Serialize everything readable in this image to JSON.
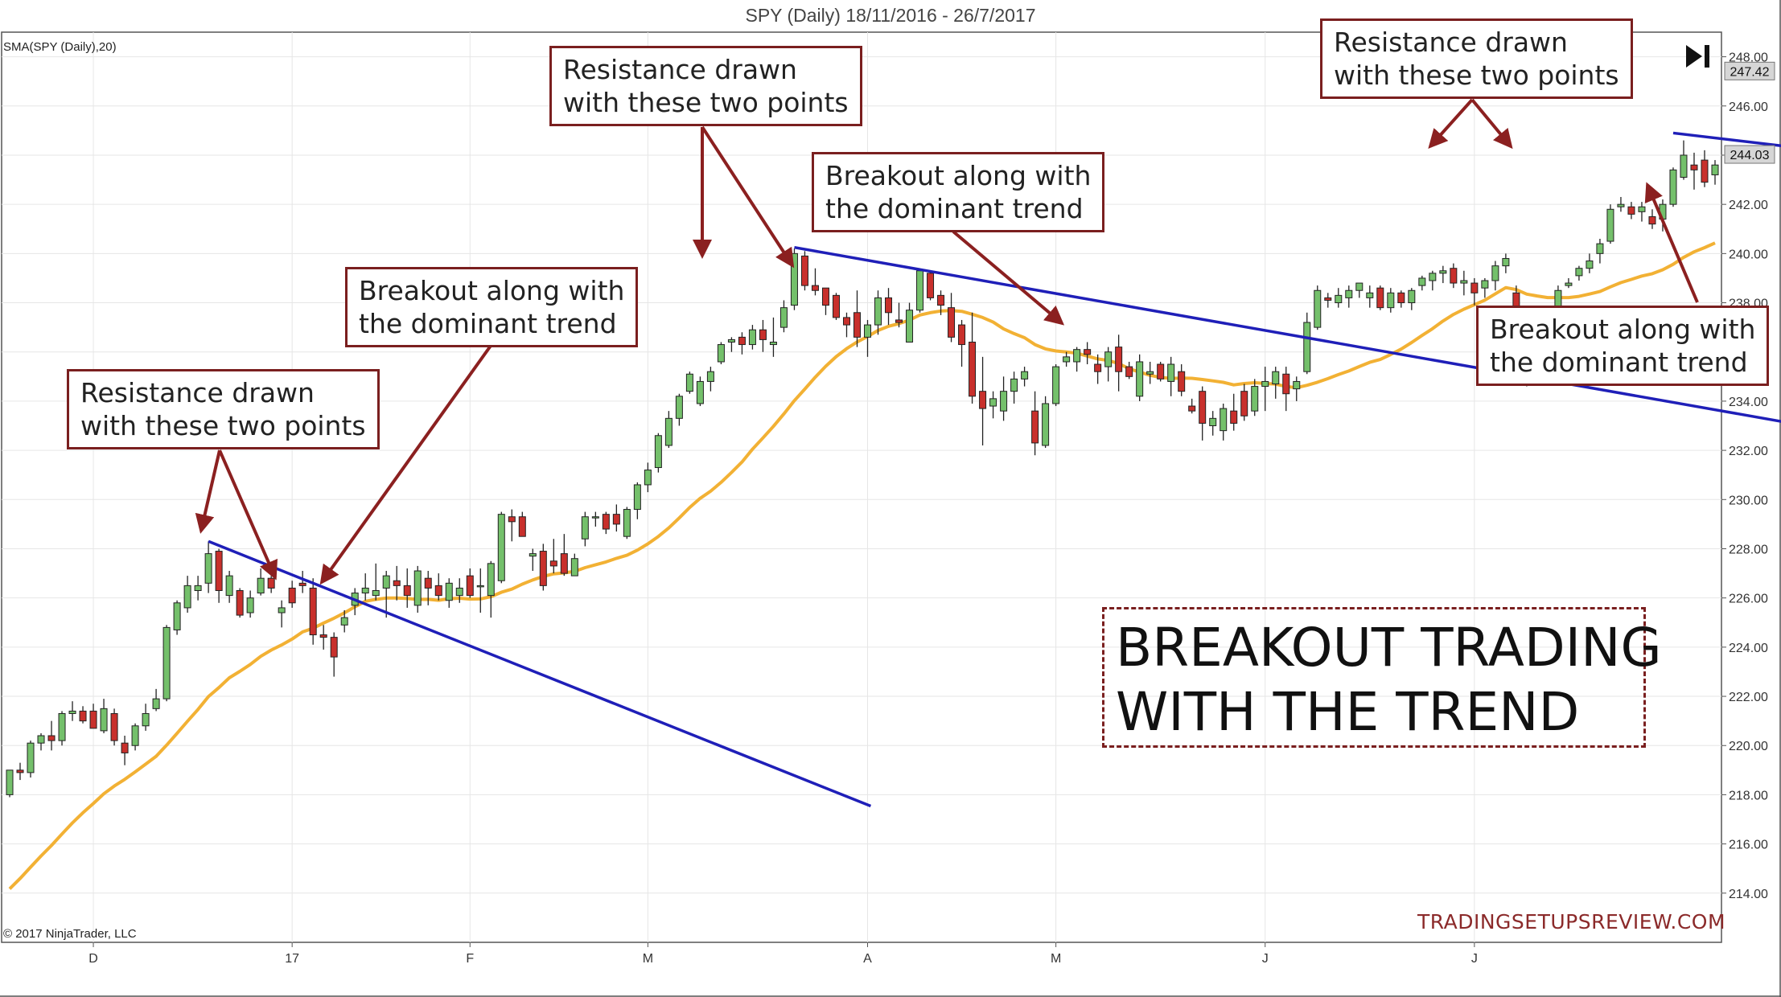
{
  "chart_data": {
    "type": "candlestick",
    "title": "SPY (Daily)  18/11/2016 - 26/7/2017",
    "indicator_label": "SMA(SPY (Daily),20)",
    "copyright": "© 2017 NinjaTrader, LLC",
    "watermark": "TRADINGSETUPSREVIEW.COM",
    "headline_lines": [
      "BREAKOUT TRADING",
      "WITH THE TREND"
    ],
    "ylim": [
      212,
      249
    ],
    "y_ticks": [
      "248.00",
      "246.00",
      "244.00",
      "242.00",
      "240.00",
      "238.00",
      "236.00",
      "234.00",
      "232.00",
      "230.00",
      "228.00",
      "226.00",
      "224.00",
      "222.00",
      "220.00",
      "218.00",
      "216.00",
      "214.00"
    ],
    "price_markers": [
      {
        "label": "247.42",
        "value": 247.42
      },
      {
        "label": "244.03",
        "value": 244.03
      }
    ],
    "x_ticks": [
      {
        "label": "D",
        "index": 8
      },
      {
        "label": "17",
        "index": 27
      },
      {
        "label": "F",
        "index": 44
      },
      {
        "label": "M",
        "index": 61
      },
      {
        "label": "A",
        "index": 82
      },
      {
        "label": "M",
        "index": 100
      },
      {
        "label": "J",
        "index": 120
      },
      {
        "label": "J",
        "index": 140
      }
    ],
    "candles": [
      [
        218.0,
        219.0,
        217.9,
        219.0
      ],
      [
        219.0,
        219.3,
        218.6,
        218.9
      ],
      [
        218.9,
        220.2,
        218.7,
        220.1
      ],
      [
        220.1,
        220.5,
        219.8,
        220.4
      ],
      [
        220.4,
        221.0,
        219.8,
        220.2
      ],
      [
        220.2,
        221.4,
        220.0,
        221.3
      ],
      [
        221.3,
        221.8,
        221.0,
        221.4
      ],
      [
        221.4,
        221.6,
        220.9,
        221.0
      ],
      [
        221.4,
        221.7,
        220.8,
        220.7
      ],
      [
        220.6,
        221.9,
        220.5,
        221.5
      ],
      [
        221.3,
        221.5,
        220.0,
        220.2
      ],
      [
        220.1,
        220.4,
        219.2,
        219.7
      ],
      [
        220.0,
        220.9,
        219.8,
        220.8
      ],
      [
        220.8,
        221.7,
        220.6,
        221.3
      ],
      [
        221.5,
        222.3,
        221.4,
        221.9
      ],
      [
        221.9,
        224.9,
        221.8,
        224.8
      ],
      [
        224.7,
        225.9,
        224.5,
        225.8
      ],
      [
        225.6,
        226.9,
        225.4,
        226.5
      ],
      [
        226.3,
        226.9,
        225.9,
        226.5
      ],
      [
        226.6,
        228.3,
        226.2,
        227.8
      ],
      [
        227.9,
        228.0,
        225.8,
        226.3
      ],
      [
        226.1,
        227.1,
        225.8,
        226.9
      ],
      [
        226.3,
        226.4,
        225.2,
        225.3
      ],
      [
        225.4,
        226.3,
        225.2,
        226.0
      ],
      [
        226.2,
        227.2,
        226.1,
        226.8
      ],
      [
        226.8,
        226.9,
        226.2,
        226.4
      ],
      [
        225.4,
        225.9,
        224.8,
        225.6
      ],
      [
        226.4,
        226.7,
        225.6,
        225.8
      ],
      [
        226.6,
        227.1,
        226.2,
        226.5
      ],
      [
        226.4,
        226.8,
        224.1,
        224.5
      ],
      [
        224.5,
        224.9,
        223.9,
        224.4
      ],
      [
        224.4,
        224.6,
        222.8,
        223.6
      ],
      [
        224.9,
        225.5,
        224.6,
        225.2
      ],
      [
        225.7,
        226.4,
        225.3,
        226.2
      ],
      [
        226.2,
        227.0,
        225.9,
        226.4
      ],
      [
        226.1,
        227.4,
        225.9,
        226.3
      ],
      [
        226.4,
        227.1,
        225.2,
        226.9
      ],
      [
        226.7,
        227.3,
        225.9,
        226.5
      ],
      [
        226.5,
        227.2,
        225.6,
        226.1
      ],
      [
        225.7,
        227.3,
        225.4,
        227.1
      ],
      [
        226.8,
        227.1,
        225.7,
        226.4
      ],
      [
        226.5,
        227.0,
        225.9,
        226.1
      ],
      [
        225.9,
        226.8,
        225.6,
        226.6
      ],
      [
        226.1,
        226.8,
        225.8,
        226.4
      ],
      [
        226.9,
        227.2,
        226.0,
        226.1
      ],
      [
        226.5,
        227.2,
        225.4,
        226.5
      ],
      [
        226.1,
        227.5,
        225.2,
        227.4
      ],
      [
        226.7,
        229.5,
        226.6,
        229.4
      ],
      [
        229.3,
        229.6,
        228.3,
        229.1
      ],
      [
        229.3,
        229.5,
        228.6,
        228.5
      ],
      [
        227.7,
        228.0,
        227.1,
        227.8
      ],
      [
        227.9,
        228.2,
        226.3,
        226.5
      ],
      [
        227.5,
        228.4,
        227.0,
        227.3
      ],
      [
        227.8,
        228.6,
        226.9,
        227.0
      ],
      [
        226.9,
        227.8,
        226.9,
        227.6
      ],
      [
        228.4,
        229.5,
        228.1,
        229.3
      ],
      [
        229.3,
        229.5,
        228.9,
        229.3
      ],
      [
        229.4,
        229.5,
        228.6,
        228.8
      ],
      [
        229.4,
        229.8,
        228.7,
        229.0
      ],
      [
        228.5,
        229.7,
        228.4,
        229.6
      ],
      [
        229.6,
        230.7,
        229.2,
        230.6
      ],
      [
        230.6,
        231.5,
        230.3,
        231.2
      ],
      [
        231.3,
        232.7,
        231.1,
        232.6
      ],
      [
        232.2,
        233.6,
        232.1,
        233.3
      ],
      [
        233.3,
        234.3,
        233.0,
        234.2
      ],
      [
        234.4,
        235.2,
        234.3,
        235.1
      ],
      [
        233.9,
        235.0,
        233.8,
        234.8
      ],
      [
        234.8,
        235.4,
        234.4,
        235.2
      ],
      [
        235.6,
        236.4,
        235.5,
        236.3
      ],
      [
        236.4,
        236.6,
        236.0,
        236.5
      ],
      [
        236.6,
        236.8,
        235.9,
        236.3
      ],
      [
        236.3,
        237.1,
        236.1,
        236.9
      ],
      [
        236.9,
        237.3,
        236.0,
        236.5
      ],
      [
        236.3,
        237.4,
        235.8,
        236.4
      ],
      [
        237.0,
        238.1,
        236.8,
        237.8
      ],
      [
        237.9,
        240.2,
        237.7,
        240.0
      ],
      [
        239.9,
        240.1,
        238.5,
        238.7
      ],
      [
        238.7,
        239.4,
        238.3,
        238.5
      ],
      [
        238.6,
        238.6,
        237.5,
        237.9
      ],
      [
        238.3,
        238.4,
        237.3,
        237.4
      ],
      [
        237.4,
        237.6,
        236.6,
        237.1
      ],
      [
        237.6,
        238.5,
        236.2,
        236.6
      ],
      [
        236.6,
        237.3,
        235.8,
        237.1
      ],
      [
        237.1,
        238.5,
        236.7,
        238.2
      ],
      [
        238.2,
        238.6,
        237.1,
        237.6
      ],
      [
        237.3,
        238.0,
        237.0,
        237.2
      ],
      [
        236.4,
        238.0,
        236.4,
        237.7
      ],
      [
        237.7,
        239.4,
        237.6,
        239.3
      ],
      [
        239.2,
        239.3,
        238.1,
        238.2
      ],
      [
        238.3,
        238.5,
        237.5,
        237.9
      ],
      [
        237.8,
        238.4,
        236.4,
        236.6
      ],
      [
        237.1,
        237.3,
        235.4,
        236.3
      ],
      [
        236.4,
        237.6,
        233.9,
        234.2
      ],
      [
        234.4,
        235.8,
        232.2,
        233.7
      ],
      [
        233.8,
        234.4,
        233.3,
        234.1
      ],
      [
        233.6,
        235.0,
        233.2,
        234.4
      ],
      [
        234.4,
        235.2,
        233.9,
        234.9
      ],
      [
        234.9,
        235.4,
        234.6,
        235.2
      ],
      [
        233.6,
        234.4,
        231.8,
        232.3
      ],
      [
        232.2,
        234.2,
        232.1,
        233.9
      ],
      [
        233.9,
        235.5,
        233.8,
        235.4
      ],
      [
        235.6,
        236.0,
        235.4,
        235.8
      ],
      [
        235.6,
        236.2,
        235.2,
        236.1
      ],
      [
        236.1,
        236.4,
        235.5,
        235.9
      ],
      [
        235.5,
        235.9,
        234.7,
        235.2
      ],
      [
        235.4,
        236.2,
        234.8,
        236.0
      ],
      [
        236.2,
        236.7,
        234.4,
        235.2
      ],
      [
        235.4,
        235.6,
        234.9,
        235.0
      ],
      [
        234.2,
        235.9,
        234.0,
        235.6
      ],
      [
        235.1,
        235.6,
        234.7,
        235.2
      ],
      [
        235.5,
        235.6,
        234.8,
        234.9
      ],
      [
        234.8,
        235.8,
        234.2,
        235.5
      ],
      [
        235.2,
        235.5,
        234.2,
        234.4
      ],
      [
        233.8,
        234.1,
        233.5,
        233.6
      ],
      [
        234.4,
        234.6,
        232.4,
        233.1
      ],
      [
        233.0,
        233.6,
        232.6,
        233.3
      ],
      [
        232.8,
        233.9,
        232.4,
        233.7
      ],
      [
        233.6,
        234.3,
        232.8,
        233.1
      ],
      [
        234.4,
        234.7,
        233.2,
        233.4
      ],
      [
        233.6,
        234.9,
        233.4,
        234.6
      ],
      [
        234.6,
        235.4,
        233.6,
        234.8
      ],
      [
        234.7,
        235.4,
        234.1,
        235.2
      ],
      [
        235.1,
        235.4,
        233.6,
        234.3
      ],
      [
        234.5,
        235.0,
        234.0,
        234.8
      ],
      [
        235.2,
        237.6,
        235.1,
        237.2
      ],
      [
        237.0,
        238.7,
        236.9,
        238.5
      ],
      [
        238.2,
        238.4,
        237.8,
        238.1
      ],
      [
        238.0,
        238.6,
        237.8,
        238.3
      ],
      [
        238.2,
        238.7,
        237.8,
        238.5
      ],
      [
        238.5,
        238.8,
        238.2,
        238.8
      ],
      [
        238.2,
        238.7,
        237.8,
        238.4
      ],
      [
        238.6,
        238.7,
        237.7,
        237.8
      ],
      [
        237.8,
        238.6,
        237.6,
        238.4
      ],
      [
        238.4,
        238.5,
        237.8,
        238.0
      ],
      [
        238.0,
        238.6,
        237.7,
        238.5
      ],
      [
        238.7,
        239.1,
        238.5,
        239.0
      ],
      [
        238.9,
        239.3,
        238.5,
        239.2
      ],
      [
        239.2,
        239.5,
        238.8,
        239.3
      ],
      [
        239.4,
        239.6,
        238.6,
        238.8
      ],
      [
        238.8,
        239.3,
        238.3,
        238.9
      ],
      [
        238.8,
        239.0,
        237.9,
        238.4
      ],
      [
        238.6,
        239.0,
        238.2,
        238.9
      ],
      [
        238.9,
        239.7,
        238.5,
        239.5
      ],
      [
        239.5,
        240.0,
        239.2,
        239.8
      ],
      [
        238.4,
        238.7,
        235.7,
        235.6
      ],
      [
        235.1,
        235.8,
        234.6,
        234.8
      ],
      [
        235.0,
        236.7,
        234.9,
        236.6
      ],
      [
        236.7,
        237.2,
        236.5,
        237.0
      ],
      [
        237.4,
        238.7,
        237.3,
        238.5
      ],
      [
        238.7,
        239.0,
        238.6,
        238.8
      ],
      [
        239.1,
        239.5,
        238.9,
        239.4
      ],
      [
        239.4,
        240.0,
        239.2,
        239.7
      ],
      [
        240.0,
        240.6,
        239.6,
        240.4
      ],
      [
        240.5,
        242.0,
        240.4,
        241.8
      ],
      [
        241.9,
        242.3,
        241.7,
        242.0
      ],
      [
        241.9,
        242.1,
        241.4,
        241.6
      ],
      [
        241.7,
        242.1,
        241.3,
        241.9
      ],
      [
        241.5,
        241.8,
        241.0,
        241.2
      ],
      [
        241.4,
        242.2,
        240.9,
        242.0
      ],
      [
        242.0,
        243.5,
        241.9,
        243.4
      ],
      [
        243.1,
        244.6,
        243.0,
        244.0
      ],
      [
        243.6,
        244.1,
        242.6,
        243.4
      ],
      [
        243.8,
        244.2,
        242.7,
        242.9
      ],
      [
        243.2,
        243.8,
        242.8,
        243.6
      ]
    ],
    "sma20_series_name": "SMA(SPY (Daily),20)"
  },
  "annotations": [
    {
      "id": "ann-resistance-1",
      "lines": [
        "Resistance drawn",
        "with these two points"
      ]
    },
    {
      "id": "ann-breakout-1",
      "lines": [
        "Breakout along with",
        "the dominant trend"
      ]
    },
    {
      "id": "ann-resistance-2",
      "lines": [
        "Resistance drawn",
        "with these two points"
      ]
    },
    {
      "id": "ann-breakout-2",
      "lines": [
        "Breakout along with",
        "the dominant trend"
      ]
    },
    {
      "id": "ann-resistance-3",
      "lines": [
        "Resistance drawn",
        "with these two points"
      ]
    },
    {
      "id": "ann-breakout-3",
      "lines": [
        "Breakout along with",
        "the dominant trend"
      ]
    }
  ],
  "colors": {
    "up_candle": "#74c06b",
    "down_candle": "#c8302c",
    "sma_line": "#f2b134",
    "trend_line": "#1f1fb8",
    "arrow": "#8b2020",
    "grid": "#e6e6e6",
    "marker_bg": "#d6d6d6"
  }
}
